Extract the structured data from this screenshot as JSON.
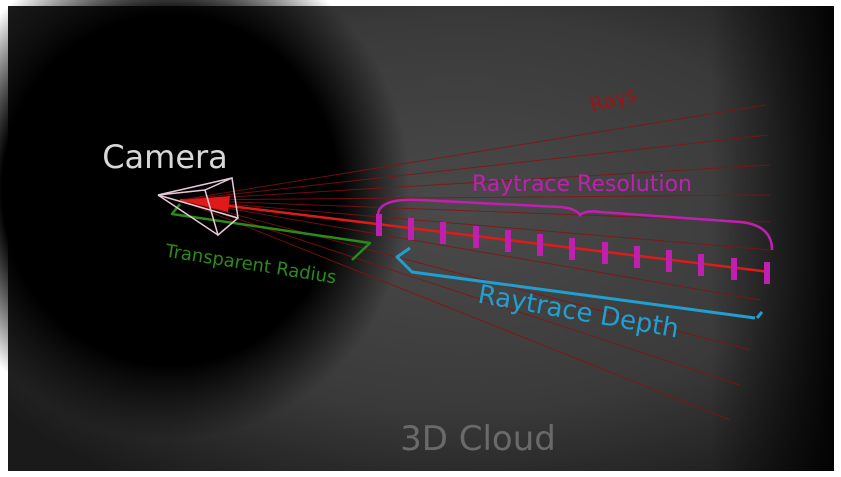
{
  "diagram": {
    "rays_label": "Rays",
    "camera_label": "Camera",
    "resolution_label": "Raytrace Resolution",
    "transparent_radius_label": "Transparent Radius",
    "depth_label": "Raytrace Depth",
    "cloud_label": "3D Cloud"
  }
}
